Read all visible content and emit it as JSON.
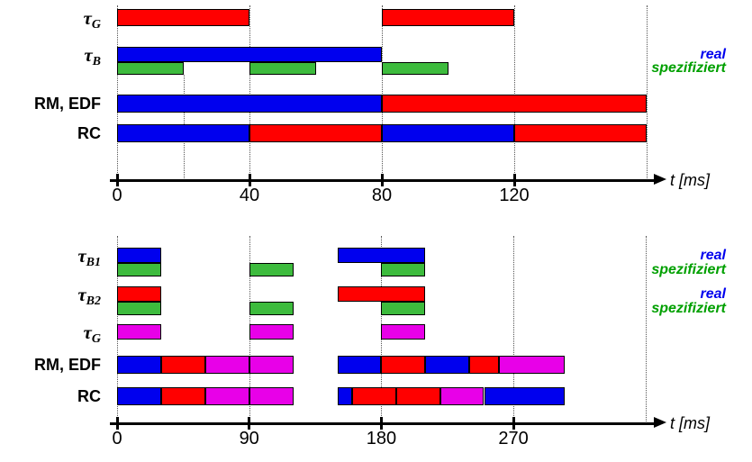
{
  "colors": {
    "blue": "#0000ee",
    "red": "#ff0000",
    "green": "#3dbb3d",
    "magenta": "#e800e8",
    "legend_real": "#0000ee",
    "legend_spez": "#00a000",
    "axis": "#000000"
  },
  "chart_data": [
    {
      "type": "gantt",
      "title": "",
      "time_unit": "ms",
      "axis_label": "t [ms]",
      "ticks": [
        0,
        40,
        80,
        120
      ],
      "t_end": 160,
      "gridlines": [
        0,
        40,
        80,
        120,
        160
      ],
      "deadline_marker_t": 20,
      "legend": [
        {
          "text": "real",
          "color": "blue"
        },
        {
          "text": "spezifiziert",
          "color": "green"
        }
      ],
      "rows": [
        {
          "label_base": "τ",
          "label_sub": "G",
          "lanes": [
            {
              "name": "tauG-executions",
              "intervals": [
                [
                  0,
                  40,
                  "red"
                ],
                [
                  80,
                  120,
                  "red"
                ]
              ]
            }
          ]
        },
        {
          "label_base": "τ",
          "label_sub": "B",
          "lanes": [
            {
              "name": "tauB-real",
              "right_label": "real",
              "right_label_color": "legend_real",
              "intervals": [
                [
                  0,
                  80,
                  "blue"
                ]
              ]
            },
            {
              "name": "tauB-spezifiziert",
              "right_label": "spezifiziert",
              "right_label_color": "legend_spez",
              "intervals": [
                [
                  0,
                  20,
                  "green"
                ],
                [
                  40,
                  60,
                  "green"
                ],
                [
                  80,
                  100,
                  "green"
                ]
              ]
            }
          ]
        },
        {
          "label": "RM, EDF",
          "lanes": [
            {
              "name": "rm-edf-schedule",
              "intervals": [
                [
                  0,
                  80,
                  "blue"
                ],
                [
                  80,
                  160,
                  "red"
                ]
              ]
            }
          ]
        },
        {
          "label": "RC",
          "lanes": [
            {
              "name": "rc-schedule",
              "intervals": [
                [
                  0,
                  40,
                  "blue"
                ],
                [
                  40,
                  80,
                  "red"
                ],
                [
                  80,
                  120,
                  "blue"
                ],
                [
                  120,
                  160,
                  "red"
                ]
              ]
            }
          ]
        }
      ]
    },
    {
      "type": "gantt",
      "title": "",
      "time_unit": "ms",
      "axis_label": "t [ms]",
      "ticks": [
        0,
        90,
        180,
        270
      ],
      "t_end": 360,
      "gridlines": [
        0,
        90,
        180,
        270,
        360
      ],
      "legend": [
        {
          "text": "real",
          "color": "blue"
        },
        {
          "text": "spezifiziert",
          "color": "green"
        },
        {
          "text": "real",
          "color": "blue"
        },
        {
          "text": "spezifiziert",
          "color": "green"
        }
      ],
      "rows": [
        {
          "label_base": "τ",
          "label_sub": "B1",
          "lanes": [
            {
              "name": "tauB1-real",
              "right_label": "real",
              "right_label_color": "legend_real",
              "intervals": [
                [
                  0,
                  30,
                  "blue"
                ],
                [
                  150,
                  210,
                  "blue"
                ]
              ]
            },
            {
              "name": "tauB1-spezifiziert",
              "right_label": "spezifiziert",
              "right_label_color": "legend_spez",
              "intervals": [
                [
                  0,
                  30,
                  "green"
                ],
                [
                  90,
                  120,
                  "green"
                ],
                [
                  180,
                  210,
                  "green"
                ]
              ]
            }
          ]
        },
        {
          "label_base": "τ",
          "label_sub": "B2",
          "lanes": [
            {
              "name": "tauB2-real",
              "right_label": "real",
              "right_label_color": "legend_real",
              "intervals": [
                [
                  0,
                  30,
                  "red"
                ],
                [
                  150,
                  210,
                  "red"
                ]
              ]
            },
            {
              "name": "tauB2-spezifiziert",
              "right_label": "spezifiziert",
              "right_label_color": "legend_spez",
              "intervals": [
                [
                  0,
                  30,
                  "green"
                ],
                [
                  90,
                  120,
                  "green"
                ],
                [
                  180,
                  210,
                  "green"
                ]
              ]
            }
          ]
        },
        {
          "label_base": "τ",
          "label_sub": "G",
          "lanes": [
            {
              "name": "tauG-executions",
              "intervals": [
                [
                  0,
                  30,
                  "magenta"
                ],
                [
                  90,
                  120,
                  "magenta"
                ],
                [
                  180,
                  210,
                  "magenta"
                ]
              ]
            }
          ]
        },
        {
          "label": "RM, EDF",
          "lanes": [
            {
              "name": "rm-edf-schedule",
              "intervals": [
                [
                  0,
                  30,
                  "blue"
                ],
                [
                  30,
                  60,
                  "red"
                ],
                [
                  60,
                  90,
                  "magenta"
                ],
                [
                  90,
                  120,
                  "magenta"
                ],
                [
                  150,
                  180,
                  "blue"
                ],
                [
                  180,
                  210,
                  "red"
                ],
                [
                  210,
                  240,
                  "blue"
                ],
                [
                  240,
                  260,
                  "red"
                ],
                [
                  260,
                  305,
                  "magenta"
                ]
              ]
            }
          ]
        },
        {
          "label": "RC",
          "lanes": [
            {
              "name": "rc-schedule",
              "intervals": [
                [
                  0,
                  30,
                  "blue"
                ],
                [
                  30,
                  60,
                  "red"
                ],
                [
                  60,
                  90,
                  "magenta"
                ],
                [
                  90,
                  120,
                  "magenta"
                ],
                [
                  150,
                  160,
                  "blue"
                ],
                [
                  160,
                  190,
                  "red"
                ],
                [
                  190,
                  220,
                  "red"
                ],
                [
                  220,
                  250,
                  "magenta"
                ],
                [
                  250,
                  305,
                  "blue"
                ]
              ]
            }
          ]
        }
      ]
    }
  ]
}
